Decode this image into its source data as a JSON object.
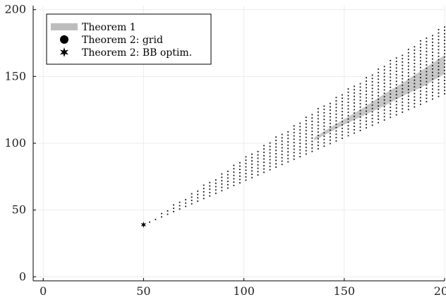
{
  "chart_data": {
    "type": "scatter",
    "xlim": [
      -5,
      200
    ],
    "ylim": [
      -3,
      203
    ],
    "x_ticks": [
      0,
      50,
      100,
      150,
      200
    ],
    "y_ticks": [
      0,
      50,
      100,
      150,
      200
    ],
    "grid": true,
    "legend_position": "top-left",
    "legend": [
      {
        "key": "band",
        "label": "Theorem 1"
      },
      {
        "key": "grid",
        "label": "Theorem 2: grid"
      },
      {
        "key": "bb",
        "label": "Theorem 2: BB optim."
      }
    ],
    "series": [
      {
        "name": "Theorem 1",
        "kind": "band",
        "color": "#bdbdbd",
        "x": [
          135,
          140,
          150,
          160,
          170,
          180,
          190,
          200
        ],
        "lower": [
          102,
          106,
          114,
          121,
          128,
          136,
          143,
          152
        ],
        "upper": [
          104,
          109,
          118,
          127,
          137,
          146,
          156,
          166
        ]
      },
      {
        "name": "Theorem 2: grid",
        "kind": "grid",
        "color": "#111111",
        "x_start": 50,
        "x_end": 200,
        "x_step": 3,
        "y_step": 2.5,
        "lower_start": 39,
        "lower_end": 137,
        "upper_start": 39,
        "upper_end": 189
      },
      {
        "name": "Theorem 2: BB optim.",
        "kind": "point",
        "color": "#000000",
        "x": [
          50
        ],
        "y": [
          39
        ]
      }
    ]
  }
}
